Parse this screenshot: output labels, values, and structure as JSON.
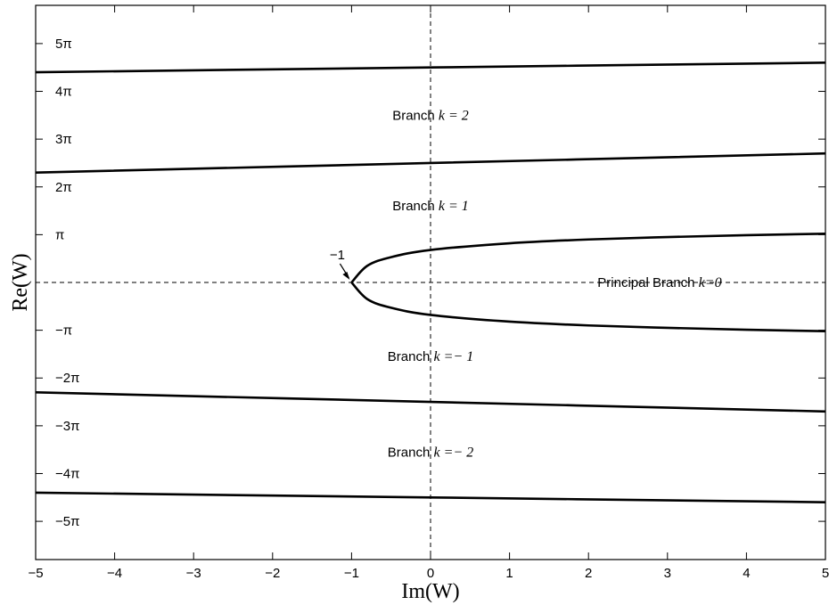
{
  "chart_data": {
    "type": "line",
    "xlabel": "Im(W)",
    "ylabel": "Re(W)",
    "xlim": [
      -5,
      5
    ],
    "ylim": [
      -5.8,
      5.8
    ],
    "y_unit": "pi",
    "x_ticks": [
      {
        "value": -5,
        "label": "−5"
      },
      {
        "value": -4,
        "label": "−4"
      },
      {
        "value": -3,
        "label": "−3"
      },
      {
        "value": -2,
        "label": "−2"
      },
      {
        "value": -1,
        "label": "−1"
      },
      {
        "value": 0,
        "label": "0"
      },
      {
        "value": 1,
        "label": "1"
      },
      {
        "value": 2,
        "label": "2"
      },
      {
        "value": 3,
        "label": "3"
      },
      {
        "value": 4,
        "label": "4"
      },
      {
        "value": 5,
        "label": "5"
      }
    ],
    "y_ticks": [
      {
        "value": 5,
        "label": "5π"
      },
      {
        "value": 4,
        "label": "4π"
      },
      {
        "value": 3,
        "label": "3π"
      },
      {
        "value": 2,
        "label": "2π"
      },
      {
        "value": 1,
        "label": "π"
      },
      {
        "value": -1,
        "label": "−π"
      },
      {
        "value": -2,
        "label": "−2π"
      },
      {
        "value": -3,
        "label": "−3π"
      },
      {
        "value": -4,
        "label": "−4π"
      },
      {
        "value": -5,
        "label": "−5π"
      }
    ],
    "series": [
      {
        "points": [
          [
            -5,
            4.4
          ],
          [
            0,
            4.5
          ],
          [
            5,
            4.6
          ]
        ]
      },
      {
        "points": [
          [
            -5,
            2.3
          ],
          [
            0,
            2.5
          ],
          [
            5,
            2.7
          ]
        ]
      },
      {
        "points": [
          [
            -1,
            0
          ],
          [
            -0.8,
            0.35
          ],
          [
            -0.5,
            0.53
          ],
          [
            0,
            0.68
          ],
          [
            1,
            0.82
          ],
          [
            2,
            0.9
          ],
          [
            3,
            0.95
          ],
          [
            4,
            0.99
          ],
          [
            5,
            1.02
          ]
        ]
      },
      {
        "points": [
          [
            -1,
            0
          ],
          [
            -0.8,
            -0.35
          ],
          [
            -0.5,
            -0.53
          ],
          [
            0,
            -0.68
          ],
          [
            1,
            -0.82
          ],
          [
            2,
            -0.9
          ],
          [
            3,
            -0.95
          ],
          [
            4,
            -0.99
          ],
          [
            5,
            -1.02
          ]
        ]
      },
      {
        "points": [
          [
            -5,
            -2.3
          ],
          [
            0,
            -2.5
          ],
          [
            5,
            -2.7
          ]
        ]
      },
      {
        "points": [
          [
            -5,
            -4.4
          ],
          [
            0,
            -4.5
          ],
          [
            5,
            -4.6
          ]
        ]
      }
    ],
    "dashed_lines": [
      {
        "orientation": "vertical",
        "value": 0
      },
      {
        "orientation": "horizontal",
        "value": 0
      }
    ],
    "annotations": [
      {
        "text": "Branch",
        "k": "k = 2",
        "x": 0,
        "y": 3.5
      },
      {
        "text": "Branch",
        "k": "k = 1",
        "x": 0,
        "y": 1.6
      },
      {
        "text": "Principal Branch",
        "k": "k=0",
        "x": 2.9,
        "y": 0
      },
      {
        "text": "Branch",
        "k": "k =− 1",
        "x": 0,
        "y": -1.55
      },
      {
        "text": "Branch",
        "k": "k =− 2",
        "x": 0,
        "y": -3.55
      }
    ],
    "point_annotation": {
      "text": "−1",
      "x": -1,
      "y": 0
    },
    "grid": false
  }
}
